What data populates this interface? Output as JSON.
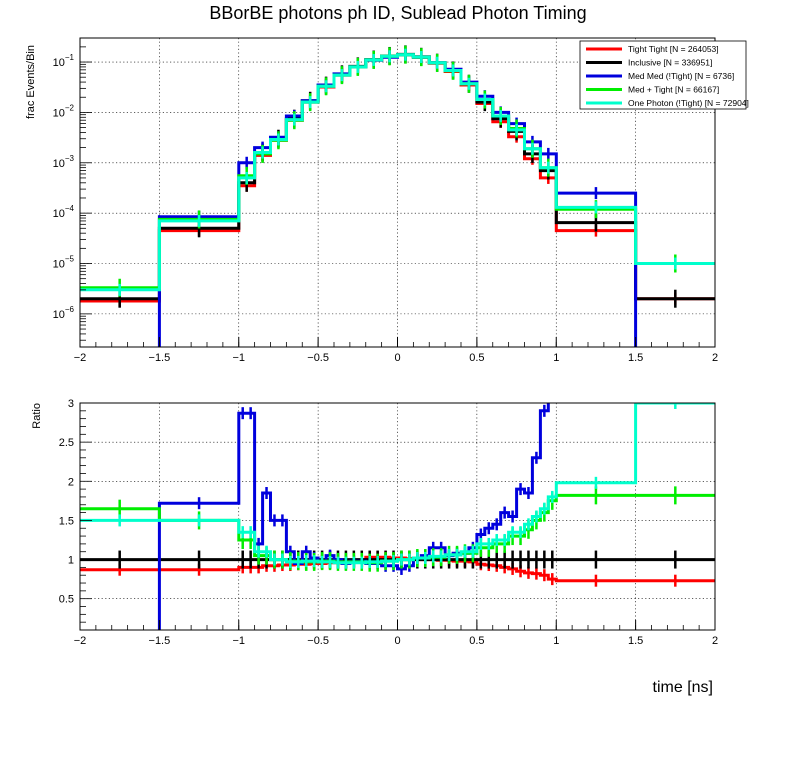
{
  "title": "BBorBE photons ph ID, Sublead Photon Timing",
  "xlabel": "time [ns]",
  "colors": {
    "tight": "#ff0000",
    "inclusive": "#000000",
    "medmed": "#0000dd",
    "medtight": "#00ee00",
    "onephoton": "#00ffcc"
  },
  "chart_data": [
    {
      "type": "line",
      "scale": "log",
      "ylabel": "frac Events/Bin",
      "xlim": [
        -2,
        2
      ],
      "ylim": [
        2.2e-07,
        0.3
      ],
      "grid": true,
      "legend_position": "top-right",
      "x_edges": [
        -2,
        -1.5,
        -1,
        -0.9,
        -0.8,
        -0.7,
        -0.6,
        -0.5,
        -0.4,
        -0.3,
        -0.2,
        -0.1,
        0,
        0.1,
        0.2,
        0.3,
        0.4,
        0.5,
        0.6,
        0.7,
        0.8,
        0.9,
        1,
        1.5,
        2
      ],
      "x_ticks": [
        -2,
        -1.5,
        -1,
        -0.5,
        0,
        0.5,
        1,
        1.5,
        2
      ],
      "y_tick_exponents": [
        -6,
        -5,
        -4,
        -3,
        -2,
        -1
      ],
      "series": [
        {
          "name": "Tight Tight [N = 264053]",
          "color_key": "tight",
          "values": [
            1.8e-06,
            4.5e-05,
            0.00035,
            0.0014,
            0.0028,
            0.007,
            0.016,
            0.032,
            0.055,
            0.08,
            0.11,
            0.13,
            0.14,
            0.125,
            0.095,
            0.065,
            0.035,
            0.015,
            0.0065,
            0.0033,
            0.0012,
            0.0005,
            4.5e-05,
            2e-06
          ]
        },
        {
          "name": "Inclusive [N = 336951]",
          "color_key": "inclusive",
          "values": [
            2e-06,
            5e-05,
            0.0004,
            0.0016,
            0.003,
            0.0075,
            0.017,
            0.034,
            0.057,
            0.082,
            0.112,
            0.132,
            0.142,
            0.127,
            0.097,
            0.068,
            0.037,
            0.016,
            0.0075,
            0.0042,
            0.0015,
            0.0007,
            6.5e-05,
            2e-06
          ]
        },
        {
          "name": "Med Med (!Tight) [N = 6736]",
          "color_key": "medmed",
          "values": [
            0,
            8.5e-05,
            0.001,
            0.002,
            0.0032,
            0.0085,
            0.017,
            0.035,
            0.058,
            0.08,
            0.108,
            0.125,
            0.14,
            0.125,
            0.097,
            0.072,
            0.04,
            0.021,
            0.01,
            0.006,
            0.0026,
            0.0015,
            0.00025,
            0
          ]
        },
        {
          "name": "Med + Tight [N = 66167]",
          "color_key": "medtight",
          "values": [
            3.3e-06,
            7.5e-05,
            0.00055,
            0.0015,
            0.0028,
            0.007,
            0.016,
            0.033,
            0.055,
            0.08,
            0.11,
            0.13,
            0.14,
            0.125,
            0.096,
            0.067,
            0.037,
            0.018,
            0.0085,
            0.0048,
            0.0019,
            0.0008,
            0.00012,
            1e-05
          ]
        },
        {
          "name": "One Photon (!Tight) [N = 72904]",
          "color_key": "onephoton",
          "values": [
            3e-06,
            7e-05,
            0.0005,
            0.0016,
            0.0029,
            0.0072,
            0.016,
            0.033,
            0.055,
            0.08,
            0.11,
            0.13,
            0.14,
            0.126,
            0.097,
            0.068,
            0.037,
            0.018,
            0.0085,
            0.0045,
            0.0019,
            0.0008,
            0.00013,
            1e-05
          ]
        }
      ]
    },
    {
      "type": "line",
      "scale": "linear",
      "ylabel": "Ratio",
      "xlim": [
        -2,
        2
      ],
      "ylim": [
        0.1,
        3
      ],
      "grid": true,
      "x_edges": [
        -2,
        -1.5,
        -1,
        -0.95,
        -0.9,
        -0.85,
        -0.8,
        -0.75,
        -0.7,
        -0.65,
        -0.6,
        -0.55,
        -0.5,
        -0.45,
        -0.4,
        -0.35,
        -0.3,
        -0.25,
        -0.2,
        -0.15,
        -0.1,
        -0.05,
        0,
        0.05,
        0.1,
        0.15,
        0.2,
        0.25,
        0.3,
        0.35,
        0.4,
        0.45,
        0.5,
        0.55,
        0.6,
        0.65,
        0.7,
        0.75,
        0.8,
        0.85,
        0.9,
        0.95,
        1,
        1.5,
        2
      ],
      "x_ticks": [
        -2,
        -1.5,
        -1,
        -0.5,
        0,
        0.5,
        1,
        1.5,
        2
      ],
      "y_ticks": [
        "0.5",
        "1",
        "1.5",
        "2",
        "2.5",
        "3"
      ],
      "series": [
        {
          "name": "Tight Tight [N = 264053]",
          "color_key": "tight",
          "values": [
            0.87,
            0.87,
            0.9,
            0.9,
            0.9,
            0.92,
            0.92,
            0.93,
            0.93,
            0.94,
            0.94,
            0.95,
            0.95,
            0.96,
            0.96,
            0.97,
            0.97,
            0.98,
            1.03,
            1.03,
            1.03,
            1.02,
            1.02,
            1.01,
            1.01,
            1,
            1,
            0.99,
            0.99,
            0.98,
            0.98,
            0.97,
            0.94,
            0.93,
            0.92,
            0.9,
            0.88,
            0.85,
            0.83,
            0.82,
            0.8,
            0.75,
            0.73,
            0.73
          ]
        },
        {
          "name": "Inclusive [N = 336951]",
          "color_key": "inclusive",
          "values": [
            1,
            1,
            1,
            1,
            1,
            1,
            1,
            1,
            1,
            1,
            1,
            1,
            1,
            1,
            1,
            1,
            1,
            1,
            1,
            1,
            1,
            1,
            1,
            1,
            1,
            1,
            1,
            1,
            1,
            1,
            1,
            1,
            1,
            1,
            1,
            1,
            1,
            1,
            1,
            1,
            1,
            1,
            1,
            1
          ]
        },
        {
          "name": "Med Med (!Tight) [N = 6736]",
          "color_key": "medmed",
          "values": [
            0,
            1.72,
            2.87,
            2.87,
            1.2,
            1.85,
            1.5,
            1.5,
            1.1,
            0.95,
            1.1,
            1.02,
            0.98,
            1.05,
            1,
            0.95,
            0.98,
            0.98,
            0.95,
            0.95,
            0.92,
            0.92,
            0.88,
            0.92,
            1.02,
            1.05,
            1.15,
            1.15,
            1.05,
            1.08,
            1.08,
            1.15,
            1.32,
            1.4,
            1.45,
            1.6,
            1.55,
            1.9,
            1.85,
            2.3,
            2.9,
            3.2,
            3.2,
            3.2
          ]
        },
        {
          "name": "Med + Tight [N = 66167]",
          "color_key": "medtight",
          "values": [
            1.65,
            1.5,
            1.25,
            1.25,
            1.05,
            1.05,
            1,
            1,
            0.98,
            0.98,
            0.97,
            0.97,
            0.98,
            0.98,
            0.97,
            0.97,
            0.97,
            0.97,
            0.96,
            0.96,
            0.98,
            0.98,
            1,
            1,
            1.02,
            1.02,
            1.03,
            1.03,
            1.06,
            1.06,
            1.08,
            1.08,
            1.15,
            1.15,
            1.2,
            1.2,
            1.3,
            1.3,
            1.38,
            1.5,
            1.6,
            1.75,
            1.82,
            1.82
          ]
        },
        {
          "name": "One Photon (!Tight) [N = 72904]",
          "color_key": "onephoton",
          "values": [
            1.5,
            1.5,
            1.35,
            1.35,
            1.1,
            1.1,
            1,
            1,
            0.97,
            0.97,
            0.98,
            0.98,
            0.97,
            0.97,
            0.96,
            0.96,
            0.96,
            0.96,
            0.97,
            0.97,
            0.98,
            0.98,
            1,
            1,
            1.02,
            1.02,
            1.04,
            1.04,
            1.06,
            1.06,
            1.1,
            1.1,
            1.2,
            1.2,
            1.25,
            1.25,
            1.35,
            1.35,
            1.45,
            1.55,
            1.65,
            1.8,
            1.98,
            3
          ]
        }
      ]
    }
  ]
}
